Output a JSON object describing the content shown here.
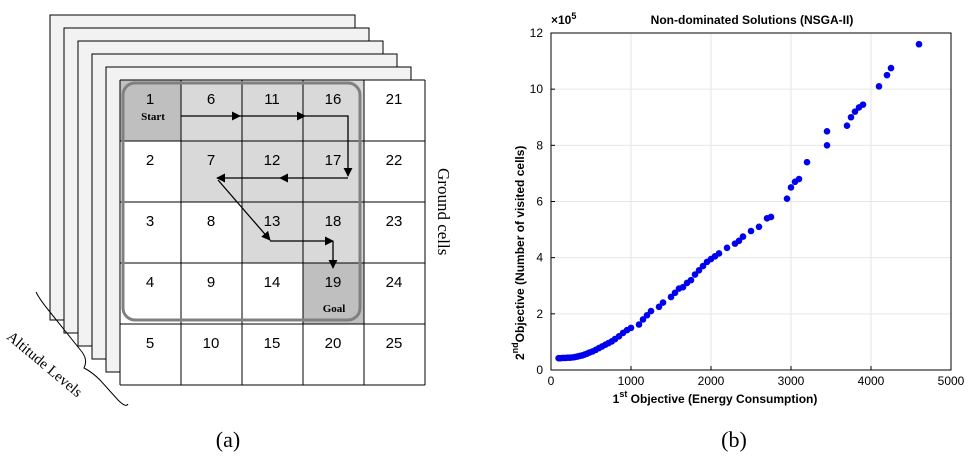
{
  "panel_a": {
    "caption": "(a)",
    "grid_numbers": [
      "1",
      "2",
      "3",
      "4",
      "5",
      "6",
      "7",
      "8",
      "9",
      "10",
      "11",
      "12",
      "13",
      "14",
      "15",
      "16",
      "17",
      "18",
      "19",
      "20",
      "21",
      "22",
      "23",
      "24",
      "25"
    ],
    "start_label": "Start",
    "goal_label": "Goal",
    "side_label": "Ground cells",
    "altitude_label": "Altitude Levels",
    "colors": {
      "shaded": "#d9d9d9",
      "dark_shaded": "#bfbfbf",
      "border": "#000000",
      "region_outline": "#808080"
    }
  },
  "panel_b": {
    "caption": "(b)",
    "exponent_base": "×10",
    "exponent_power": "5",
    "chart_data": {
      "type": "scatter",
      "title": "Non-dominated Solutions (NSGA-II)",
      "xlabel_sup": "st",
      "xlabel_num": "1",
      "xlabel_text": " Objective (Energy Consumption)",
      "ylabel_num": "2",
      "ylabel_sup": "nd",
      "ylabel_text": "Objective (Number of visited cells)",
      "xlim": [
        0,
        5000
      ],
      "ylim": [
        0,
        12
      ],
      "y_scale_factor": "1e5",
      "xticks": [
        "0",
        "1000",
        "2000",
        "3000",
        "4000",
        "5000"
      ],
      "yticks": [
        "0",
        "2",
        "4",
        "6",
        "8",
        "10",
        "12"
      ],
      "grid": true,
      "marker_color": "#0000ee",
      "points": [
        [
          95,
          0.42
        ],
        [
          120,
          0.42
        ],
        [
          150,
          0.43
        ],
        [
          180,
          0.43
        ],
        [
          210,
          0.44
        ],
        [
          240,
          0.44
        ],
        [
          270,
          0.45
        ],
        [
          300,
          0.46
        ],
        [
          330,
          0.48
        ],
        [
          360,
          0.5
        ],
        [
          390,
          0.52
        ],
        [
          420,
          0.55
        ],
        [
          450,
          0.58
        ],
        [
          480,
          0.62
        ],
        [
          520,
          0.66
        ],
        [
          560,
          0.72
        ],
        [
          600,
          0.78
        ],
        [
          640,
          0.84
        ],
        [
          680,
          0.9
        ],
        [
          720,
          0.96
        ],
        [
          760,
          1.02
        ],
        [
          800,
          1.1
        ],
        [
          850,
          1.2
        ],
        [
          900,
          1.32
        ],
        [
          950,
          1.42
        ],
        [
          1000,
          1.5
        ],
        [
          1100,
          1.62
        ],
        [
          1150,
          1.8
        ],
        [
          1200,
          1.95
        ],
        [
          1250,
          2.1
        ],
        [
          1350,
          2.25
        ],
        [
          1400,
          2.4
        ],
        [
          1500,
          2.6
        ],
        [
          1550,
          2.75
        ],
        [
          1600,
          2.9
        ],
        [
          1650,
          2.95
        ],
        [
          1700,
          3.1
        ],
        [
          1750,
          3.2
        ],
        [
          1800,
          3.4
        ],
        [
          1850,
          3.55
        ],
        [
          1900,
          3.7
        ],
        [
          1950,
          3.85
        ],
        [
          2000,
          3.95
        ],
        [
          2050,
          4.05
        ],
        [
          2100,
          4.15
        ],
        [
          2200,
          4.35
        ],
        [
          2300,
          4.5
        ],
        [
          2350,
          4.6
        ],
        [
          2400,
          4.75
        ],
        [
          2500,
          4.95
        ],
        [
          2600,
          5.1
        ],
        [
          2700,
          5.4
        ],
        [
          2750,
          5.45
        ],
        [
          2950,
          6.1
        ],
        [
          3000,
          6.5
        ],
        [
          3050,
          6.7
        ],
        [
          3100,
          6.8
        ],
        [
          3200,
          7.4
        ],
        [
          3450,
          8.0
        ],
        [
          3450,
          8.5
        ],
        [
          3700,
          8.7
        ],
        [
          3750,
          9.0
        ],
        [
          3800,
          9.2
        ],
        [
          3850,
          9.35
        ],
        [
          3900,
          9.45
        ],
        [
          4100,
          10.1
        ],
        [
          4200,
          10.5
        ],
        [
          4250,
          10.75
        ],
        [
          4600,
          11.6
        ]
      ]
    }
  }
}
